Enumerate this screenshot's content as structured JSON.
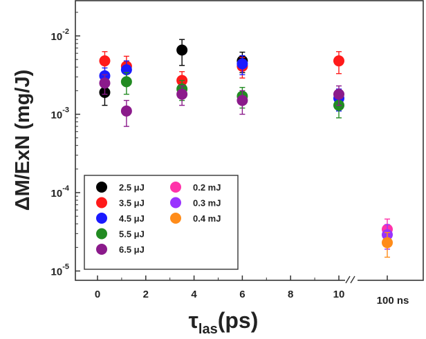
{
  "chart_data": {
    "type": "scatter",
    "title": "",
    "xlabel": {
      "main": "τ",
      "sub": "las",
      "unit": "(ps)"
    },
    "ylabel": "ΔM/ExN (mg/J)",
    "y_scale": "log",
    "ylim": [
      1e-05,
      0.03
    ],
    "y_ticks": [
      {
        "value": 1e-05,
        "base": "10",
        "exp": "-5"
      },
      {
        "value": 0.0001,
        "base": "10",
        "exp": "-4"
      },
      {
        "value": 0.001,
        "base": "10",
        "exp": "-3"
      },
      {
        "value": 0.01,
        "base": "10",
        "exp": "-2"
      }
    ],
    "x_segments": [
      {
        "range": [
          -1,
          10.5
        ],
        "ticks": [
          0,
          2,
          4,
          6,
          8,
          10
        ],
        "tick_labels": [
          "0",
          "2",
          "4",
          "6",
          "8",
          "10"
        ]
      },
      {
        "ticks": [
          100
        ],
        "tick_labels": [
          "100 ns"
        ],
        "unit": "ns"
      }
    ],
    "axis_break": "between 10 ps and 100 ns",
    "grid": false,
    "legend_position": "bottom-left",
    "series": [
      {
        "name": "2.5 μJ",
        "color": "#000000",
        "points": [
          {
            "x": 0.3,
            "y": 0.0019,
            "err": 0.0006
          },
          {
            "x": 3.5,
            "y": 0.0066,
            "err": 0.0024
          },
          {
            "x": 6,
            "y": 0.0048,
            "err": 0.0014
          }
        ]
      },
      {
        "name": "3.5 μJ",
        "color": "#ff1a1a",
        "points": [
          {
            "x": 0.3,
            "y": 0.0048,
            "err": 0.0015
          },
          {
            "x": 1.2,
            "y": 0.0041,
            "err": 0.0014
          },
          {
            "x": 3.5,
            "y": 0.0027,
            "err": 0.0008
          },
          {
            "x": 6,
            "y": 0.0041,
            "err": 0.0012
          },
          {
            "x": 10,
            "y": 0.0048,
            "err": 0.0015
          }
        ]
      },
      {
        "name": "4.5 μJ",
        "color": "#1a1aff",
        "points": [
          {
            "x": 0.3,
            "y": 0.0031,
            "err": 0.0008
          },
          {
            "x": 1.2,
            "y": 0.0037,
            "err": 0.0011
          },
          {
            "x": 6,
            "y": 0.0044,
            "err": 0.0012
          },
          {
            "x": 10,
            "y": 0.0016,
            "err": 0.0005
          }
        ]
      },
      {
        "name": "5.5 μJ",
        "color": "#228b22",
        "points": [
          {
            "x": 1.2,
            "y": 0.0026,
            "err": 0.0008
          },
          {
            "x": 3.5,
            "y": 0.0021,
            "err": 0.0006
          },
          {
            "x": 6,
            "y": 0.0017,
            "err": 0.0005
          },
          {
            "x": 10,
            "y": 0.0013,
            "err": 0.0004
          }
        ]
      },
      {
        "name": "6.5 μJ",
        "color": "#8b1a8b",
        "points": [
          {
            "x": 0.3,
            "y": 0.0025,
            "err": 0.0007
          },
          {
            "x": 1.2,
            "y": 0.0011,
            "err": 0.0004
          },
          {
            "x": 3.5,
            "y": 0.0018,
            "err": 0.0005
          },
          {
            "x": 6,
            "y": 0.0015,
            "err": 0.0005
          },
          {
            "x": 10,
            "y": 0.0018,
            "err": 0.0005
          }
        ]
      },
      {
        "name": "0.2 mJ",
        "color": "#ff33aa",
        "points": [
          {
            "x": 100,
            "y": 3.4e-05,
            "err": 1.2e-05
          }
        ]
      },
      {
        "name": "0.3 mJ",
        "color": "#9933ff",
        "points": [
          {
            "x": 100,
            "y": 2.9e-05,
            "err": 1e-05
          }
        ]
      },
      {
        "name": "0.4 mJ",
        "color": "#ff8c1a",
        "points": [
          {
            "x": 100,
            "y": 2.3e-05,
            "err": 8e-06
          }
        ]
      }
    ]
  }
}
